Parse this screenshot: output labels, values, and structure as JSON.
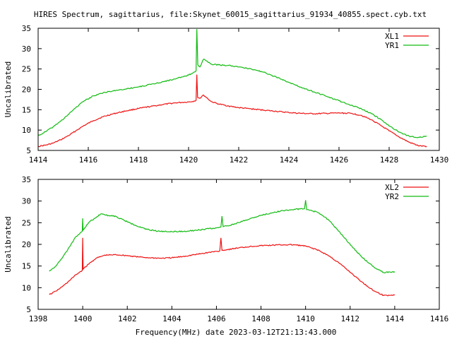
{
  "title": "HIRES Spectrum, sagittarius, file:Skynet_60015_sagittarius_91934_40855.spect.cyb.txt",
  "xlabel": "Frequency(MHz) date 2023-03-12T21:13:43.000",
  "colors": {
    "red": "#ee1111",
    "green": "#11bb11",
    "frame": "#000000"
  },
  "chart_data": [
    {
      "type": "line",
      "ylabel": "Uncalibrated",
      "xlim": [
        1414,
        1430
      ],
      "ylim": [
        5,
        35
      ],
      "xticks": [
        1414,
        1416,
        1418,
        1420,
        1422,
        1424,
        1426,
        1428,
        1430
      ],
      "yticks": [
        5,
        10,
        15,
        20,
        25,
        30,
        35
      ],
      "legend_position": "top-right",
      "series": [
        {
          "name": "XL1",
          "color": "#ee1111",
          "x": [
            1414.0,
            1414.3,
            1414.6,
            1414.9,
            1415.2,
            1415.5,
            1415.8,
            1416.2,
            1416.6,
            1417.0,
            1417.5,
            1418.0,
            1418.5,
            1419.0,
            1419.5,
            1420.0,
            1420.15,
            1420.3,
            1420.33,
            1420.36,
            1420.45,
            1420.6,
            1420.9,
            1421.2,
            1421.6,
            1422.0,
            1422.5,
            1423.0,
            1423.5,
            1424.0,
            1424.5,
            1425.0,
            1425.5,
            1426.0,
            1426.5,
            1426.9,
            1427.3,
            1427.7,
            1428.0,
            1428.4,
            1428.8,
            1429.2,
            1429.5
          ],
          "y": [
            6.0,
            6.3,
            6.8,
            7.6,
            8.6,
            9.8,
            11.0,
            12.3,
            13.3,
            14.0,
            14.7,
            15.3,
            15.8,
            16.3,
            16.7,
            16.9,
            17.0,
            17.3,
            23.6,
            18.0,
            17.8,
            18.6,
            17.0,
            16.4,
            15.9,
            15.5,
            15.2,
            14.9,
            14.6,
            14.3,
            14.1,
            14.0,
            14.1,
            14.2,
            14.1,
            13.6,
            12.5,
            11.0,
            9.8,
            8.3,
            7.0,
            6.1,
            6.0
          ]
        },
        {
          "name": "YR1",
          "color": "#11bb11",
          "x": [
            1414.0,
            1414.3,
            1414.6,
            1414.9,
            1415.2,
            1415.5,
            1415.8,
            1416.2,
            1416.6,
            1417.0,
            1417.5,
            1418.0,
            1418.5,
            1419.0,
            1419.5,
            1420.0,
            1420.15,
            1420.3,
            1420.33,
            1420.37,
            1420.45,
            1420.6,
            1420.9,
            1421.2,
            1421.6,
            1422.0,
            1422.5,
            1423.0,
            1423.5,
            1424.0,
            1424.5,
            1425.0,
            1425.5,
            1426.0,
            1426.5,
            1426.9,
            1427.3,
            1427.7,
            1428.0,
            1428.4,
            1428.8,
            1429.2,
            1429.5
          ],
          "y": [
            8.6,
            9.6,
            10.8,
            12.2,
            13.8,
            15.5,
            17.0,
            18.4,
            19.2,
            19.6,
            20.1,
            20.6,
            21.2,
            21.9,
            22.6,
            23.5,
            23.9,
            24.5,
            34.8,
            26.0,
            25.5,
            27.4,
            26.2,
            26.0,
            25.9,
            25.5,
            25.0,
            24.2,
            23.0,
            21.7,
            20.5,
            19.4,
            18.3,
            17.2,
            16.1,
            15.2,
            14.0,
            12.5,
            11.0,
            9.5,
            8.5,
            8.2,
            8.5
          ]
        }
      ]
    },
    {
      "type": "line",
      "ylabel": "Uncalibrated",
      "xlim": [
        1398,
        1416
      ],
      "ylim": [
        5,
        35
      ],
      "xticks": [
        1398,
        1400,
        1402,
        1404,
        1406,
        1408,
        1410,
        1412,
        1414,
        1416
      ],
      "yticks": [
        5,
        10,
        15,
        20,
        25,
        30,
        35
      ],
      "legend_position": "top-right",
      "series": [
        {
          "name": "XL2",
          "color": "#ee1111",
          "x": [
            1398.5,
            1398.8,
            1399.1,
            1399.4,
            1399.7,
            1399.98,
            1400.0,
            1400.02,
            1400.3,
            1400.6,
            1401.0,
            1401.5,
            1402.0,
            1402.5,
            1403.0,
            1403.5,
            1404.0,
            1404.5,
            1405.0,
            1405.5,
            1406.0,
            1406.15,
            1406.2,
            1406.25,
            1406.5,
            1407.0,
            1407.5,
            1408.0,
            1408.5,
            1409.0,
            1409.5,
            1410.0,
            1410.5,
            1411.0,
            1411.5,
            1412.0,
            1412.5,
            1413.0,
            1413.5,
            1414.0
          ],
          "y": [
            8.4,
            9.2,
            10.3,
            11.6,
            13.0,
            14.0,
            21.5,
            14.3,
            15.6,
            16.8,
            17.5,
            17.6,
            17.4,
            17.1,
            16.9,
            16.8,
            16.9,
            17.2,
            17.6,
            18.0,
            18.4,
            18.5,
            21.5,
            18.6,
            18.8,
            19.2,
            19.5,
            19.7,
            19.8,
            19.9,
            19.9,
            19.6,
            18.8,
            17.5,
            15.7,
            13.6,
            11.4,
            9.5,
            8.2,
            8.3
          ]
        },
        {
          "name": "YR2",
          "color": "#11bb11",
          "x": [
            1398.5,
            1398.8,
            1399.1,
            1399.4,
            1399.7,
            1399.98,
            1400.0,
            1400.02,
            1400.3,
            1400.6,
            1400.8,
            1401.0,
            1401.5,
            1402.0,
            1402.5,
            1403.0,
            1403.5,
            1404.0,
            1404.5,
            1405.0,
            1405.5,
            1406.0,
            1406.2,
            1406.25,
            1406.3,
            1406.5,
            1407.0,
            1407.5,
            1408.0,
            1408.5,
            1409.0,
            1409.5,
            1409.95,
            1410.0,
            1410.05,
            1410.5,
            1411.0,
            1411.5,
            1412.0,
            1412.5,
            1413.0,
            1413.5,
            1414.0
          ],
          "y": [
            13.8,
            15.0,
            17.0,
            19.4,
            21.8,
            23.0,
            26.0,
            23.3,
            25.2,
            26.2,
            27.0,
            26.8,
            26.4,
            25.2,
            24.1,
            23.3,
            23.0,
            22.9,
            23.0,
            23.2,
            23.5,
            23.8,
            24.0,
            26.5,
            24.1,
            24.3,
            25.0,
            25.9,
            26.7,
            27.3,
            27.8,
            28.1,
            28.2,
            30.2,
            28.0,
            27.5,
            25.8,
            23.0,
            20.0,
            17.2,
            15.0,
            13.5,
            13.7
          ]
        }
      ]
    }
  ]
}
